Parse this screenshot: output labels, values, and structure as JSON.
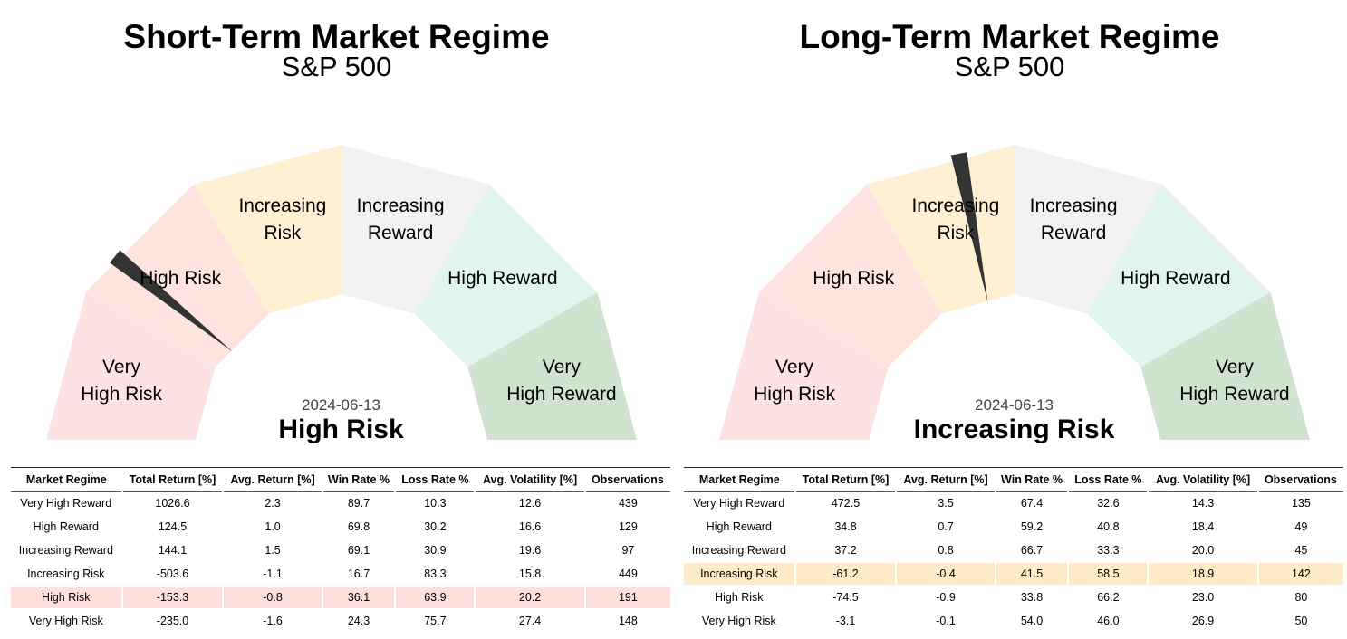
{
  "chart_data": [
    {
      "type": "gauge",
      "title": "Short-Term Market Regime",
      "subtitle": "S&P 500",
      "segments": [
        {
          "label": [
            "Very",
            "High Risk"
          ],
          "color": "#fde2e4"
        },
        {
          "label": [
            "High Risk"
          ],
          "color": "#fee3df"
        },
        {
          "label": [
            "Increasing",
            "Risk"
          ],
          "color": "#fff0d4"
        },
        {
          "label": [
            "Increasing",
            "Reward"
          ],
          "color": "#f2f2f2"
        },
        {
          "label": [
            "High Reward"
          ],
          "color": "#e1f5ee"
        },
        {
          "label": [
            "Very",
            "High Reward"
          ],
          "color": "#cfe3ce"
        }
      ],
      "needle_angle_deg": 141,
      "date": "2024-06-13",
      "current_regime": "High Risk",
      "highlight_color": "#fde0dc",
      "highlight_row": 4,
      "table": {
        "columns": [
          "Market Regime",
          "Total Return [%]",
          "Avg. Return [%]",
          "Win Rate %",
          "Loss Rate %",
          "Avg. Volatility [%]",
          "Observations"
        ],
        "rows": [
          [
            "Very High Reward",
            "1026.6",
            "2.3",
            "89.7",
            "10.3",
            "12.6",
            "439"
          ],
          [
            "High Reward",
            "124.5",
            "1.0",
            "69.8",
            "30.2",
            "16.6",
            "129"
          ],
          [
            "Increasing Reward",
            "144.1",
            "1.5",
            "69.1",
            "30.9",
            "19.6",
            "97"
          ],
          [
            "Increasing Risk",
            "-503.6",
            "-1.1",
            "16.7",
            "83.3",
            "15.8",
            "449"
          ],
          [
            "High Risk",
            "-153.3",
            "-0.8",
            "36.1",
            "63.9",
            "20.2",
            "191"
          ],
          [
            "Very High Risk",
            "-235.0",
            "-1.6",
            "24.3",
            "75.7",
            "27.4",
            "148"
          ]
        ]
      }
    },
    {
      "type": "gauge",
      "title": "Long-Term Market Regime",
      "subtitle": "S&P 500",
      "segments": [
        {
          "label": [
            "Very",
            "High Risk"
          ],
          "color": "#fde2e4"
        },
        {
          "label": [
            "High Risk"
          ],
          "color": "#fee3df"
        },
        {
          "label": [
            "Increasing",
            "Risk"
          ],
          "color": "#fff0d4"
        },
        {
          "label": [
            "Increasing",
            "Reward"
          ],
          "color": "#f2f2f2"
        },
        {
          "label": [
            "High Reward"
          ],
          "color": "#e1f5ee"
        },
        {
          "label": [
            "Very",
            "High Reward"
          ],
          "color": "#cfe3ce"
        }
      ],
      "needle_angle_deg": 101,
      "date": "2024-06-13",
      "current_regime": "Increasing Risk",
      "highlight_color": "#fdebc8",
      "highlight_row": 3,
      "table": {
        "columns": [
          "Market Regime",
          "Total Return [%]",
          "Avg. Return [%]",
          "Win Rate %",
          "Loss Rate %",
          "Avg. Volatility [%]",
          "Observations"
        ],
        "rows": [
          [
            "Very High Reward",
            "472.5",
            "3.5",
            "67.4",
            "32.6",
            "14.3",
            "135"
          ],
          [
            "High Reward",
            "34.8",
            "0.7",
            "59.2",
            "40.8",
            "18.4",
            "49"
          ],
          [
            "Increasing Reward",
            "37.2",
            "0.8",
            "66.7",
            "33.3",
            "20.0",
            "45"
          ],
          [
            "Increasing Risk",
            "-61.2",
            "-0.4",
            "41.5",
            "58.5",
            "18.9",
            "142"
          ],
          [
            "High Risk",
            "-74.5",
            "-0.9",
            "33.8",
            "66.2",
            "23.0",
            "80"
          ],
          [
            "Very High Risk",
            "-3.1",
            "-0.1",
            "54.0",
            "46.0",
            "26.9",
            "50"
          ]
        ]
      }
    }
  ]
}
